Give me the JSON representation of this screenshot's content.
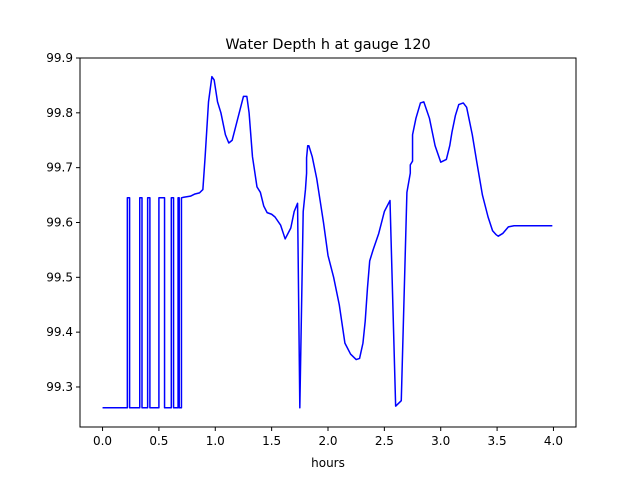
{
  "chart_data": {
    "type": "line",
    "title": "Water Depth h at gauge 120",
    "xlabel": "hours",
    "ylabel": "",
    "xlim": [
      -0.2,
      4.2
    ],
    "ylim": [
      99.227,
      99.9
    ],
    "grid": false,
    "xticks": [
      0.0,
      0.5,
      1.0,
      1.5,
      2.0,
      2.5,
      3.0,
      3.5,
      4.0
    ],
    "xtick_labels": [
      "0.0",
      "0.5",
      "1.0",
      "1.5",
      "2.0",
      "2.5",
      "3.0",
      "3.5",
      "4.0"
    ],
    "yticks": [
      99.3,
      99.4,
      99.5,
      99.6,
      99.7,
      99.8,
      99.9
    ],
    "ytick_labels": [
      "99.3",
      "99.4",
      "99.5",
      "99.6",
      "99.7",
      "99.8",
      "99.9"
    ],
    "series": [
      {
        "color": "#0000ff",
        "x": [
          0.0,
          0.22,
          0.22,
          0.24,
          0.24,
          0.33,
          0.33,
          0.35,
          0.35,
          0.4,
          0.4,
          0.42,
          0.42,
          0.5,
          0.5,
          0.55,
          0.55,
          0.61,
          0.61,
          0.63,
          0.63,
          0.67,
          0.67,
          0.68,
          0.68,
          0.7,
          0.7,
          0.72,
          0.78,
          0.82,
          0.86,
          0.89,
          0.91,
          0.94,
          0.97,
          0.99,
          1.02,
          1.05,
          1.09,
          1.12,
          1.15,
          1.2,
          1.25,
          1.28,
          1.3,
          1.33,
          1.37,
          1.4,
          1.43,
          1.46,
          1.5,
          1.53,
          1.58,
          1.62,
          1.67,
          1.7,
          1.73,
          1.75,
          1.78,
          1.8,
          1.81,
          1.81,
          1.82,
          1.83,
          1.86,
          1.9,
          1.93,
          1.96,
          2.0,
          2.05,
          2.1,
          2.15,
          2.2,
          2.25,
          2.28,
          2.31,
          2.33,
          2.35,
          2.37,
          2.4,
          2.45,
          2.5,
          2.55,
          2.6,
          2.65,
          2.7,
          2.73,
          2.73,
          2.75,
          2.75,
          2.78,
          2.82,
          2.85,
          2.9,
          2.95,
          3.0,
          3.05,
          3.08,
          3.1,
          3.13,
          3.16,
          3.2,
          3.23,
          3.25,
          3.28,
          3.32,
          3.37,
          3.42,
          3.46,
          3.49,
          3.51,
          3.55,
          3.6,
          3.65,
          3.7,
          3.75,
          3.8,
          3.85,
          3.9,
          3.95,
          3.99
        ],
        "y": [
          99.262,
          99.262,
          99.645,
          99.645,
          99.262,
          99.262,
          99.645,
          99.645,
          99.262,
          99.262,
          99.645,
          99.645,
          99.262,
          99.262,
          99.645,
          99.645,
          99.262,
          99.262,
          99.645,
          99.645,
          99.262,
          99.262,
          99.645,
          99.645,
          99.262,
          99.262,
          99.645,
          99.646,
          99.648,
          99.652,
          99.654,
          99.66,
          99.72,
          99.82,
          99.866,
          99.86,
          99.82,
          99.8,
          99.76,
          99.745,
          99.75,
          99.79,
          99.83,
          99.83,
          99.8,
          99.72,
          99.665,
          99.655,
          99.63,
          99.618,
          99.615,
          99.61,
          99.595,
          99.57,
          99.59,
          99.62,
          99.635,
          99.262,
          99.62,
          99.66,
          99.69,
          99.718,
          99.74,
          99.74,
          99.72,
          99.68,
          99.64,
          99.6,
          99.54,
          99.5,
          99.45,
          99.38,
          99.36,
          99.35,
          99.352,
          99.38,
          99.42,
          99.48,
          99.53,
          99.55,
          99.58,
          99.62,
          99.64,
          99.265,
          99.275,
          99.655,
          99.69,
          99.705,
          99.712,
          99.76,
          99.79,
          99.818,
          99.82,
          99.79,
          99.74,
          99.71,
          99.715,
          99.74,
          99.765,
          99.795,
          99.815,
          99.818,
          99.81,
          99.79,
          99.76,
          99.71,
          99.65,
          99.61,
          99.585,
          99.578,
          99.575,
          99.58,
          99.592,
          99.594,
          99.594,
          99.594,
          99.594,
          99.594,
          99.594,
          99.594,
          99.594
        ]
      }
    ]
  }
}
